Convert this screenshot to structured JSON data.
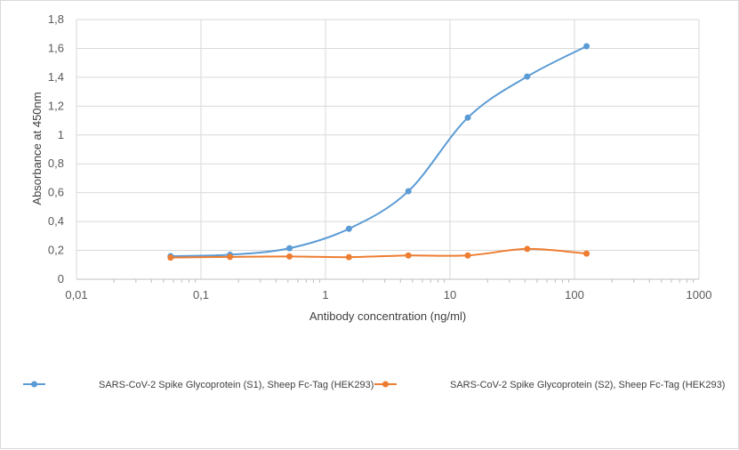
{
  "chart_data": {
    "type": "line",
    "x_scale": "log",
    "xlim": [
      0.01,
      1000
    ],
    "ylim": [
      0,
      1.8
    ],
    "y_major_step": 0.2,
    "x_ticks": [
      "0,01",
      "0,1",
      "1",
      "10",
      "100",
      "1000"
    ],
    "y_ticks": [
      "0",
      "0,2",
      "0,4",
      "0,6",
      "0,8",
      "1",
      "1,2",
      "1,4",
      "1,6",
      "1,8"
    ],
    "xlabel": "Antibody concentration (ng/ml)",
    "ylabel": "Absorbance at 450nm",
    "grid": true,
    "legend_position": "bottom",
    "x": [
      0.057,
      0.171,
      0.514,
      1.543,
      4.63,
      13.9,
      41.7,
      125
    ],
    "series": [
      {
        "name": "SARS-CoV-2 Spike Glycoprotein (S1), Sheep Fc-Tag (HEK293)",
        "color": "#5b9bd5",
        "values": [
          0.16,
          0.17,
          0.215,
          0.35,
          0.61,
          1.12,
          1.405,
          1.615
        ]
      },
      {
        "name": "SARS-CoV-2 Spike Glycoprotein (S2), Sheep Fc-Tag (HEK293)",
        "color": "#ed7d31",
        "values": [
          0.15,
          0.155,
          0.158,
          0.153,
          0.165,
          0.165,
          0.21,
          0.178
        ]
      }
    ]
  }
}
